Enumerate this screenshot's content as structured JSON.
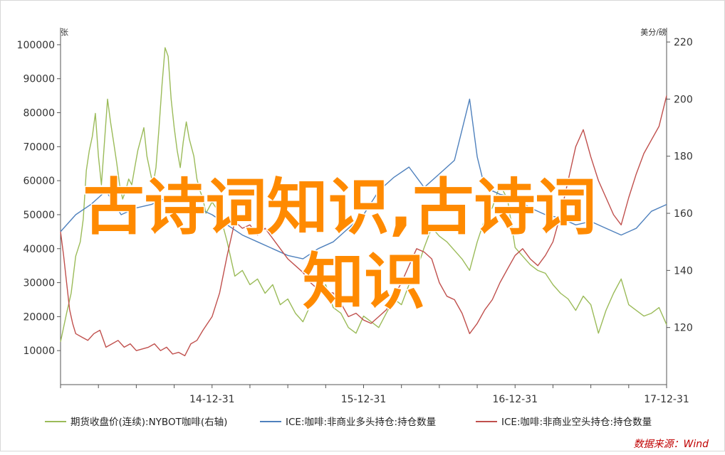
{
  "chart_data": {
    "type": "line",
    "left_axis_unit": "张",
    "right_axis_unit": "美分/磅",
    "x_ticks": [
      "14-12-31",
      "15-12-31",
      "16-12-31",
      "17-12-31"
    ],
    "y_left": {
      "lim": [
        0,
        105000
      ],
      "ticks": [
        10000,
        20000,
        30000,
        40000,
        50000,
        60000,
        70000,
        80000,
        90000,
        100000
      ]
    },
    "y_right": {
      "lim": [
        100,
        225
      ],
      "ticks": [
        120,
        140,
        160,
        180,
        200,
        220
      ]
    },
    "x_range": [
      "2014-01",
      "2017-12"
    ],
    "series": [
      {
        "name": "期货收盘价(连续):NYBOT咖啡(右轴)",
        "axis": "right",
        "color": "#9bbb59",
        "points": [
          [
            2014.0,
            115
          ],
          [
            2014.04,
            125
          ],
          [
            2014.07,
            132
          ],
          [
            2014.1,
            145
          ],
          [
            2014.13,
            150
          ],
          [
            2014.15,
            158
          ],
          [
            2014.17,
            175
          ],
          [
            2014.19,
            182
          ],
          [
            2014.21,
            187
          ],
          [
            2014.23,
            195
          ],
          [
            2014.25,
            180
          ],
          [
            2014.27,
            170
          ],
          [
            2014.29,
            185
          ],
          [
            2014.31,
            200
          ],
          [
            2014.33,
            192
          ],
          [
            2014.35,
            185
          ],
          [
            2014.37,
            178
          ],
          [
            2014.39,
            170
          ],
          [
            2014.41,
            165
          ],
          [
            2014.43,
            168
          ],
          [
            2014.45,
            172
          ],
          [
            2014.47,
            170
          ],
          [
            2014.49,
            176
          ],
          [
            2014.51,
            182
          ],
          [
            2014.53,
            186
          ],
          [
            2014.55,
            190
          ],
          [
            2014.57,
            180
          ],
          [
            2014.59,
            175
          ],
          [
            2014.61,
            170
          ],
          [
            2014.63,
            176
          ],
          [
            2014.65,
            190
          ],
          [
            2014.67,
            205
          ],
          [
            2014.69,
            218
          ],
          [
            2014.71,
            215
          ],
          [
            2014.73,
            200
          ],
          [
            2014.75,
            190
          ],
          [
            2014.77,
            182
          ],
          [
            2014.79,
            176
          ],
          [
            2014.81,
            185
          ],
          [
            2014.83,
            192
          ],
          [
            2014.85,
            186
          ],
          [
            2014.88,
            180
          ],
          [
            2014.9,
            172
          ],
          [
            2014.92,
            168
          ],
          [
            2014.94,
            165
          ],
          [
            2014.96,
            160
          ],
          [
            2014.98,
            162
          ],
          [
            2015.0,
            164
          ],
          [
            2015.05,
            160
          ],
          [
            2015.1,
            150
          ],
          [
            2015.15,
            138
          ],
          [
            2015.2,
            140
          ],
          [
            2015.25,
            135
          ],
          [
            2015.3,
            137
          ],
          [
            2015.35,
            132
          ],
          [
            2015.4,
            135
          ],
          [
            2015.45,
            128
          ],
          [
            2015.5,
            130
          ],
          [
            2015.55,
            125
          ],
          [
            2015.6,
            122
          ],
          [
            2015.65,
            128
          ],
          [
            2015.7,
            132
          ],
          [
            2015.75,
            135
          ],
          [
            2015.8,
            127
          ],
          [
            2015.85,
            125
          ],
          [
            2015.9,
            120
          ],
          [
            2015.95,
            118
          ],
          [
            2016.0,
            124
          ],
          [
            2016.05,
            122
          ],
          [
            2016.1,
            120
          ],
          [
            2016.15,
            125
          ],
          [
            2016.2,
            130
          ],
          [
            2016.25,
            128
          ],
          [
            2016.3,
            135
          ],
          [
            2016.35,
            140
          ],
          [
            2016.4,
            148
          ],
          [
            2016.45,
            155
          ],
          [
            2016.5,
            152
          ],
          [
            2016.55,
            150
          ],
          [
            2016.6,
            147
          ],
          [
            2016.65,
            144
          ],
          [
            2016.7,
            140
          ],
          [
            2016.75,
            150
          ],
          [
            2016.8,
            158
          ],
          [
            2016.85,
            162
          ],
          [
            2016.9,
            170
          ],
          [
            2016.95,
            165
          ],
          [
            2017.0,
            148
          ],
          [
            2017.05,
            145
          ],
          [
            2017.1,
            142
          ],
          [
            2017.15,
            140
          ],
          [
            2017.2,
            139
          ],
          [
            2017.25,
            135
          ],
          [
            2017.3,
            132
          ],
          [
            2017.35,
            130
          ],
          [
            2017.4,
            126
          ],
          [
            2017.45,
            131
          ],
          [
            2017.5,
            128
          ],
          [
            2017.55,
            118
          ],
          [
            2017.6,
            126
          ],
          [
            2017.65,
            132
          ],
          [
            2017.7,
            137
          ],
          [
            2017.75,
            128
          ],
          [
            2017.8,
            126
          ],
          [
            2017.85,
            124
          ],
          [
            2017.9,
            125
          ],
          [
            2017.95,
            127
          ],
          [
            2018.0,
            121
          ]
        ]
      },
      {
        "name": "ICE:咖啡:非商业多头持仓:持仓数量",
        "axis": "left",
        "color": "#4f81bd",
        "points": [
          [
            2014.0,
            45000
          ],
          [
            2014.1,
            50000
          ],
          [
            2014.2,
            53000
          ],
          [
            2014.3,
            57000
          ],
          [
            2014.4,
            50000
          ],
          [
            2014.5,
            52000
          ],
          [
            2014.6,
            53000
          ],
          [
            2014.7,
            55000
          ],
          [
            2014.8,
            55000
          ],
          [
            2014.9,
            52000
          ],
          [
            2015.0,
            50000
          ],
          [
            2015.1,
            47000
          ],
          [
            2015.2,
            44000
          ],
          [
            2015.3,
            42000
          ],
          [
            2015.4,
            40000
          ],
          [
            2015.5,
            38000
          ],
          [
            2015.6,
            37000
          ],
          [
            2015.7,
            40000
          ],
          [
            2015.8,
            42000
          ],
          [
            2015.9,
            46000
          ],
          [
            2016.0,
            50000
          ],
          [
            2016.1,
            57000
          ],
          [
            2016.2,
            61000
          ],
          [
            2016.3,
            64000
          ],
          [
            2016.4,
            58000
          ],
          [
            2016.5,
            62000
          ],
          [
            2016.6,
            66000
          ],
          [
            2016.65,
            75000
          ],
          [
            2016.7,
            84000
          ],
          [
            2016.75,
            67000
          ],
          [
            2016.8,
            58000
          ],
          [
            2016.9,
            56000
          ],
          [
            2017.0,
            55000
          ],
          [
            2017.1,
            52000
          ],
          [
            2017.2,
            50000
          ],
          [
            2017.3,
            49000
          ],
          [
            2017.4,
            47000
          ],
          [
            2017.5,
            48000
          ],
          [
            2017.6,
            46000
          ],
          [
            2017.7,
            44000
          ],
          [
            2017.8,
            46000
          ],
          [
            2017.9,
            51000
          ],
          [
            2018.0,
            53000
          ]
        ]
      },
      {
        "name": "ICE:咖啡:非商业空头持仓:持仓数量",
        "axis": "left",
        "color": "#c0504d",
        "points": [
          [
            2014.0,
            45000
          ],
          [
            2014.02,
            38000
          ],
          [
            2014.04,
            30000
          ],
          [
            2014.06,
            22000
          ],
          [
            2014.08,
            18000
          ],
          [
            2014.1,
            15000
          ],
          [
            2014.14,
            14000
          ],
          [
            2014.18,
            13000
          ],
          [
            2014.22,
            15000
          ],
          [
            2014.26,
            16000
          ],
          [
            2014.3,
            11000
          ],
          [
            2014.34,
            12000
          ],
          [
            2014.38,
            13000
          ],
          [
            2014.42,
            11000
          ],
          [
            2014.46,
            12000
          ],
          [
            2014.5,
            10000
          ],
          [
            2014.54,
            10500
          ],
          [
            2014.58,
            11000
          ],
          [
            2014.62,
            12000
          ],
          [
            2014.66,
            10000
          ],
          [
            2014.7,
            11000
          ],
          [
            2014.74,
            9000
          ],
          [
            2014.78,
            9500
          ],
          [
            2014.82,
            8500
          ],
          [
            2014.86,
            12000
          ],
          [
            2014.9,
            13000
          ],
          [
            2014.94,
            16000
          ],
          [
            2015.0,
            20000
          ],
          [
            2015.05,
            27000
          ],
          [
            2015.1,
            38000
          ],
          [
            2015.15,
            48000
          ],
          [
            2015.2,
            46000
          ],
          [
            2015.25,
            47000
          ],
          [
            2015.3,
            44000
          ],
          [
            2015.35,
            46000
          ],
          [
            2015.4,
            43000
          ],
          [
            2015.45,
            40000
          ],
          [
            2015.5,
            37000
          ],
          [
            2015.55,
            35000
          ],
          [
            2015.6,
            33000
          ],
          [
            2015.65,
            30000
          ],
          [
            2015.7,
            28000
          ],
          [
            2015.75,
            27000
          ],
          [
            2015.8,
            27000
          ],
          [
            2015.85,
            24000
          ],
          [
            2015.9,
            20000
          ],
          [
            2015.95,
            21000
          ],
          [
            2016.0,
            19000
          ],
          [
            2016.05,
            18000
          ],
          [
            2016.1,
            20000
          ],
          [
            2016.15,
            22000
          ],
          [
            2016.2,
            26000
          ],
          [
            2016.25,
            30000
          ],
          [
            2016.3,
            35000
          ],
          [
            2016.35,
            40000
          ],
          [
            2016.4,
            39000
          ],
          [
            2016.45,
            37000
          ],
          [
            2016.5,
            30000
          ],
          [
            2016.55,
            26000
          ],
          [
            2016.6,
            25000
          ],
          [
            2016.65,
            21000
          ],
          [
            2016.7,
            15000
          ],
          [
            2016.75,
            18000
          ],
          [
            2016.8,
            22000
          ],
          [
            2016.85,
            25000
          ],
          [
            2016.9,
            30000
          ],
          [
            2016.95,
            34000
          ],
          [
            2017.0,
            38000
          ],
          [
            2017.05,
            40000
          ],
          [
            2017.1,
            37000
          ],
          [
            2017.15,
            35000
          ],
          [
            2017.2,
            38000
          ],
          [
            2017.25,
            42000
          ],
          [
            2017.3,
            50000
          ],
          [
            2017.35,
            60000
          ],
          [
            2017.4,
            70000
          ],
          [
            2017.45,
            75000
          ],
          [
            2017.5,
            67000
          ],
          [
            2017.55,
            60000
          ],
          [
            2017.6,
            55000
          ],
          [
            2017.65,
            50000
          ],
          [
            2017.7,
            47000
          ],
          [
            2017.75,
            55000
          ],
          [
            2017.8,
            62000
          ],
          [
            2017.85,
            68000
          ],
          [
            2017.9,
            72000
          ],
          [
            2017.95,
            76000
          ],
          [
            2018.0,
            85000
          ]
        ]
      }
    ],
    "source": "数据来源：Wind"
  },
  "watermark": {
    "line1": "古诗词知识,古诗词",
    "line2": "知识"
  },
  "colors": {
    "watermark": "#ff8a00",
    "source": "#c00000",
    "axis": "#444444"
  }
}
